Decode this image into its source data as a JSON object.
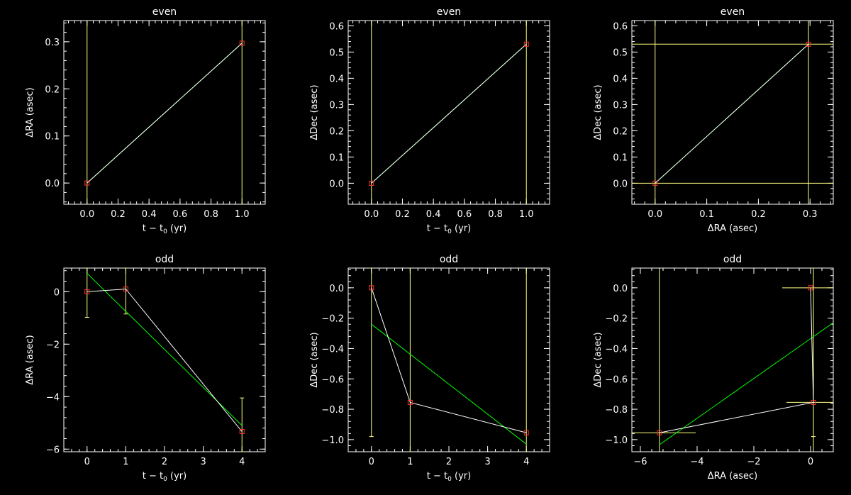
{
  "chart_data": [
    {
      "type": "line",
      "title": "even",
      "xlabel": "t − t",
      "xlabel_sub": "0",
      "xlabel_tail": " (yr)",
      "ylabel": "ΔRA (asec)",
      "xlim": [
        -0.15,
        1.15
      ],
      "ylim": [
        -0.045,
        0.345
      ],
      "xticks": [
        0.0,
        0.2,
        0.4,
        0.6,
        0.8,
        1.0
      ],
      "xtick_labels": [
        "0.0",
        "0.2",
        "0.4",
        "0.6",
        "0.8",
        "1.0"
      ],
      "yticks": [
        0.0,
        0.1,
        0.2,
        0.3
      ],
      "ytick_labels": [
        "0.0",
        "0.1",
        "0.2",
        "0.3"
      ],
      "points": [
        {
          "x": 0,
          "y": 0.0
        },
        {
          "x": 1,
          "y": 0.297
        }
      ],
      "vlines": [
        0,
        1
      ],
      "hlines": [],
      "fit": [
        [
          0,
          0.0
        ],
        [
          1,
          0.297
        ]
      ],
      "errorbars": [],
      "colors": {
        "data": "#ffffff",
        "points": "#ff3030",
        "errors": "#ffff80",
        "fit": "#00ff00"
      }
    },
    {
      "type": "line",
      "title": "even",
      "xlabel": "t − t",
      "xlabel_sub": "0",
      "xlabel_tail": " (yr)",
      "ylabel": "ΔDec (asec)",
      "xlim": [
        -0.15,
        1.15
      ],
      "ylim": [
        -0.08,
        0.62
      ],
      "xticks": [
        0.0,
        0.2,
        0.4,
        0.6,
        0.8,
        1.0
      ],
      "xtick_labels": [
        "0.0",
        "0.2",
        "0.4",
        "0.6",
        "0.8",
        "1.0"
      ],
      "yticks": [
        0.0,
        0.1,
        0.2,
        0.3,
        0.4,
        0.5,
        0.6
      ],
      "ytick_labels": [
        "0.0",
        "0.1",
        "0.2",
        "0.3",
        "0.4",
        "0.5",
        "0.6"
      ],
      "points": [
        {
          "x": 0,
          "y": 0.0
        },
        {
          "x": 1,
          "y": 0.53
        }
      ],
      "vlines": [
        0,
        1
      ],
      "hlines": [],
      "fit": [
        [
          0,
          0.0
        ],
        [
          1,
          0.53
        ]
      ],
      "errorbars": [],
      "colors": {
        "data": "#ffffff",
        "points": "#ff3030",
        "errors": "#ffff80",
        "fit": "#00ff00"
      }
    },
    {
      "type": "line",
      "title": "even",
      "xlabel": "ΔRA (asec)",
      "xlabel_sub": "",
      "xlabel_tail": "",
      "ylabel": "ΔDec (asec)",
      "xlim": [
        -0.045,
        0.345
      ],
      "ylim": [
        -0.08,
        0.62
      ],
      "xticks": [
        0.0,
        0.1,
        0.2,
        0.3
      ],
      "xtick_labels": [
        "0.0",
        "0.1",
        "0.2",
        "0.3"
      ],
      "yticks": [
        0.0,
        0.1,
        0.2,
        0.3,
        0.4,
        0.5,
        0.6
      ],
      "ytick_labels": [
        "0.0",
        "0.1",
        "0.2",
        "0.3",
        "0.4",
        "0.5",
        "0.6"
      ],
      "points": [
        {
          "x": 0.0,
          "y": 0.0
        },
        {
          "x": 0.297,
          "y": 0.53
        }
      ],
      "vlines": [
        0.0,
        0.297
      ],
      "hlines": [
        0.0,
        0.53
      ],
      "fit": [
        [
          0.0,
          0.0
        ],
        [
          0.297,
          0.53
        ]
      ],
      "errorbars": [],
      "colors": {
        "data": "#ffffff",
        "points": "#ff3030",
        "errors": "#ffff80",
        "fit": "#00ff00"
      }
    },
    {
      "type": "line",
      "title": "odd",
      "xlabel": "t − t",
      "xlabel_sub": "0",
      "xlabel_tail": " (yr)",
      "ylabel": "ΔRA (asec)",
      "xlim": [
        -0.6,
        4.6
      ],
      "ylim": [
        -6.1,
        0.9
      ],
      "xticks": [
        0,
        1,
        2,
        3,
        4
      ],
      "xtick_labels": [
        "0",
        "1",
        "2",
        "3",
        "4"
      ],
      "yticks": [
        0,
        -2,
        -4,
        -6
      ],
      "ytick_labels": [
        "0",
        "−2",
        "−4",
        "−6"
      ],
      "points": [
        {
          "x": 0,
          "y": 0.0
        },
        {
          "x": 1,
          "y": 0.1
        },
        {
          "x": 4,
          "y": -5.33
        }
      ],
      "vlines": [],
      "hlines": [],
      "fit": [
        [
          0,
          0.7
        ],
        [
          4,
          -5.1
        ]
      ],
      "errorbars": [
        {
          "x": 0,
          "y": 0.0,
          "ylo": -0.98,
          "yhi": 0.9
        },
        {
          "x": 1,
          "y": 0.1,
          "ylo": -0.85,
          "yhi": 0.9
        },
        {
          "x": 4,
          "y": -5.33,
          "ylo": -6.1,
          "yhi": -4.05
        }
      ],
      "colors": {
        "data": "#ffffff",
        "points": "#ff3030",
        "errors": "#ffff80",
        "fit": "#00ff00"
      }
    },
    {
      "type": "line",
      "title": "odd",
      "xlabel": "t − t",
      "xlabel_sub": "0",
      "xlabel_tail": " (yr)",
      "ylabel": "ΔDec (asec)",
      "xlim": [
        -0.6,
        4.6
      ],
      "ylim": [
        -1.08,
        0.13
      ],
      "xticks": [
        0,
        1,
        2,
        3,
        4
      ],
      "xtick_labels": [
        "0",
        "1",
        "2",
        "3",
        "4"
      ],
      "yticks": [
        0.0,
        -0.2,
        -0.4,
        -0.6,
        -0.8,
        -1.0
      ],
      "ytick_labels": [
        "0.0",
        "−0.2",
        "−0.4",
        "−0.6",
        "−0.8",
        "−1.0"
      ],
      "points": [
        {
          "x": 0,
          "y": 0.0
        },
        {
          "x": 1,
          "y": -0.755
        },
        {
          "x": 4,
          "y": -0.955
        }
      ],
      "vlines": [
        1,
        4
      ],
      "hlines": [],
      "fit": [
        [
          0,
          -0.24
        ],
        [
          4,
          -1.03
        ]
      ],
      "errorbars": [
        {
          "x": 0,
          "y": 0.0,
          "ylo": -0.98,
          "yhi": 0.13
        }
      ],
      "colors": {
        "data": "#ffffff",
        "points": "#ff3030",
        "errors": "#ffff80",
        "fit": "#00ff00"
      }
    },
    {
      "type": "line",
      "title": "odd",
      "xlabel": "ΔRA (asec)",
      "xlabel_sub": "",
      "xlabel_tail": "",
      "ylabel": "ΔDec (asec)",
      "xlim": [
        -6.3,
        0.8
      ],
      "ylim": [
        -1.08,
        0.13
      ],
      "xticks": [
        -6,
        -4,
        -2,
        0
      ],
      "xtick_labels": [
        "−6",
        "−4",
        "−2",
        "0"
      ],
      "yticks": [
        0.0,
        -0.2,
        -0.4,
        -0.6,
        -0.8,
        -1.0
      ],
      "ytick_labels": [
        "0.0",
        "−0.2",
        "−0.4",
        "−0.6",
        "−0.8",
        "−1.0"
      ],
      "points": [
        {
          "x": 0.0,
          "y": 0.0
        },
        {
          "x": 0.1,
          "y": -0.755
        },
        {
          "x": -5.33,
          "y": -0.955
        }
      ],
      "vlines": [
        -5.33,
        0.1
      ],
      "hlines": [],
      "fit": [
        [
          -5.3,
          -1.03
        ],
        [
          0.8,
          -0.23
        ]
      ],
      "errorbars": [
        {
          "x": 0.1,
          "y": -0.755,
          "ylo": -0.98,
          "yhi": 0.13
        }
      ],
      "xerrorbars": [
        {
          "y": 0.0,
          "xlo": -1.0,
          "xhi": 0.8
        },
        {
          "y": -0.755,
          "xlo": -0.85,
          "xhi": 0.8
        },
        {
          "y": -0.955,
          "xlo": -6.3,
          "xhi": -4.05
        }
      ],
      "colors": {
        "data": "#ffffff",
        "points": "#ff3030",
        "errors": "#ffff80",
        "fit": "#00ff00"
      }
    }
  ]
}
